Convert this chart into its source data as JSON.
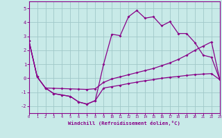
{
  "bg_color": "#c8eae8",
  "grid_color": "#a0c8c8",
  "line_color": "#880088",
  "xlim": [
    0,
    23
  ],
  "ylim": [
    -2.5,
    5.5
  ],
  "xticks": [
    0,
    1,
    2,
    3,
    4,
    5,
    6,
    7,
    8,
    9,
    10,
    11,
    12,
    13,
    14,
    15,
    16,
    17,
    18,
    19,
    20,
    21,
    22,
    23
  ],
  "yticks": [
    -2,
    -1,
    0,
    1,
    2,
    3,
    4,
    5
  ],
  "xlabel": "Windchill (Refroidissement éolien,°C)",
  "line1_x": [
    0,
    1,
    2,
    3,
    4,
    5,
    6,
    7,
    8,
    9,
    10,
    11,
    12,
    13,
    14,
    15,
    16,
    17,
    18,
    19,
    20,
    21,
    22,
    23
  ],
  "line1_y": [
    2.7,
    0.1,
    -0.7,
    -1.1,
    -1.2,
    -1.3,
    -1.7,
    -1.85,
    -1.6,
    1.0,
    3.15,
    3.05,
    4.4,
    4.85,
    4.3,
    4.4,
    3.75,
    4.05,
    3.2,
    3.2,
    2.55,
    1.65,
    1.5,
    -0.1
  ],
  "line2_x": [
    0,
    1,
    2,
    3,
    4,
    5,
    6,
    7,
    8,
    9,
    10,
    11,
    12,
    13,
    14,
    15,
    16,
    17,
    18,
    19,
    20,
    21,
    22,
    23
  ],
  "line2_y": [
    2.7,
    0.1,
    -0.7,
    -0.72,
    -0.74,
    -0.76,
    -0.78,
    -0.8,
    -0.75,
    -0.3,
    -0.05,
    0.1,
    0.25,
    0.4,
    0.55,
    0.7,
    0.9,
    1.1,
    1.35,
    1.65,
    2.0,
    2.3,
    2.6,
    -0.1
  ],
  "line3_x": [
    0,
    1,
    2,
    3,
    4,
    5,
    6,
    7,
    8,
    9,
    10,
    11,
    12,
    13,
    14,
    15,
    16,
    17,
    18,
    19,
    20,
    21,
    22,
    23
  ],
  "line3_y": [
    2.7,
    0.1,
    -0.7,
    -1.1,
    -1.2,
    -1.3,
    -1.7,
    -1.85,
    -1.6,
    -0.7,
    -0.6,
    -0.5,
    -0.38,
    -0.28,
    -0.18,
    -0.1,
    0.0,
    0.07,
    0.13,
    0.2,
    0.26,
    0.3,
    0.33,
    -0.1
  ]
}
